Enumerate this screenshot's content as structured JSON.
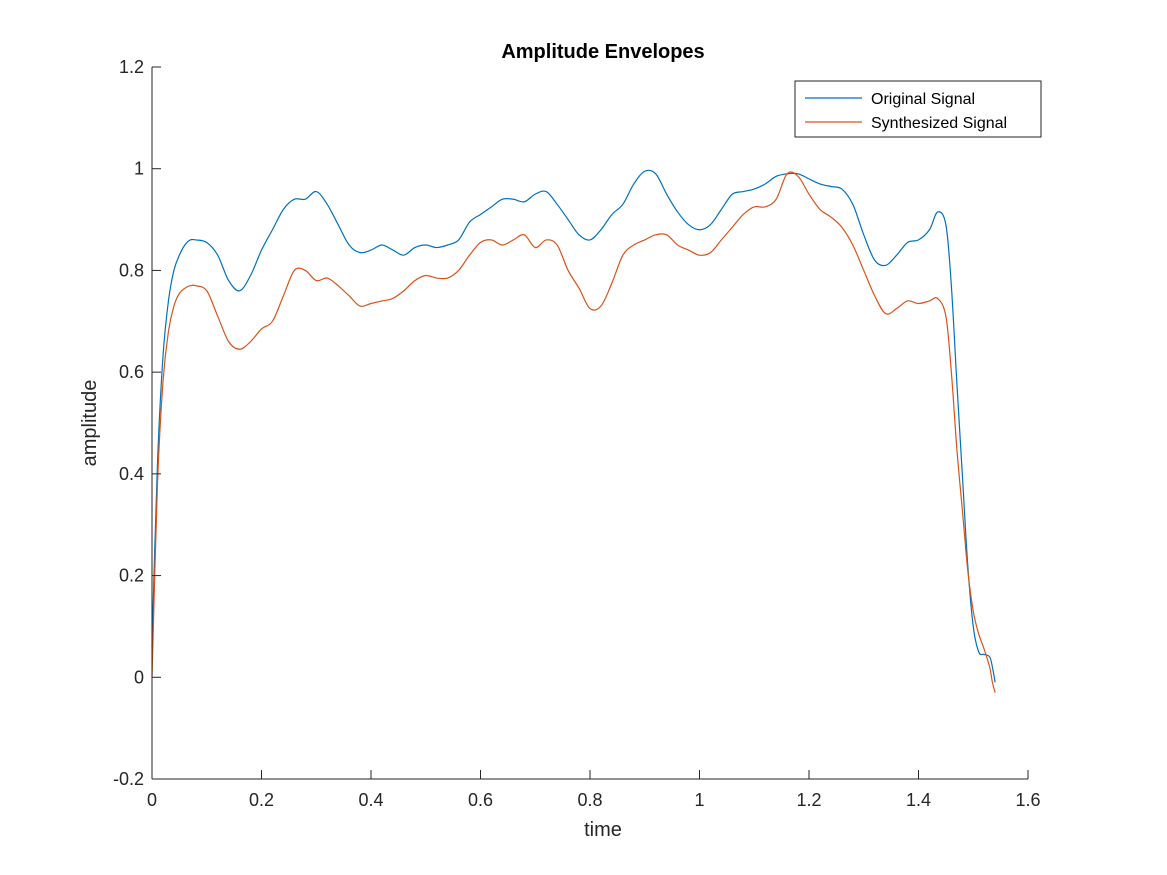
{
  "chart_data": {
    "type": "line",
    "title": "Amplitude Envelopes",
    "xlabel": "time",
    "ylabel": "amplitude",
    "xlim": [
      0,
      1.6
    ],
    "ylim": [
      -0.2,
      1.2
    ],
    "xticks": [
      "0",
      "0.2",
      "0.4",
      "0.6",
      "0.8",
      "1",
      "1.2",
      "1.4",
      "1.6"
    ],
    "yticks": [
      "-0.2",
      "0",
      "0.2",
      "0.4",
      "0.6",
      "0.8",
      "1",
      "1.2"
    ],
    "grid": false,
    "legend_position": "top-right",
    "series": [
      {
        "name": "Original Signal",
        "color": "#0072BD",
        "x": [
          0,
          0.01,
          0.02,
          0.03,
          0.04,
          0.05,
          0.06,
          0.07,
          0.08,
          0.1,
          0.12,
          0.14,
          0.16,
          0.18,
          0.2,
          0.22,
          0.24,
          0.26,
          0.28,
          0.3,
          0.32,
          0.34,
          0.36,
          0.38,
          0.4,
          0.42,
          0.44,
          0.46,
          0.48,
          0.5,
          0.52,
          0.54,
          0.56,
          0.58,
          0.6,
          0.62,
          0.64,
          0.66,
          0.68,
          0.7,
          0.72,
          0.74,
          0.76,
          0.78,
          0.8,
          0.82,
          0.84,
          0.86,
          0.88,
          0.9,
          0.92,
          0.94,
          0.96,
          0.98,
          1.0,
          1.02,
          1.04,
          1.06,
          1.08,
          1.1,
          1.12,
          1.14,
          1.16,
          1.18,
          1.2,
          1.22,
          1.24,
          1.26,
          1.28,
          1.3,
          1.32,
          1.34,
          1.36,
          1.38,
          1.4,
          1.42,
          1.435,
          1.45,
          1.46,
          1.47,
          1.48,
          1.49,
          1.5,
          1.51,
          1.52,
          1.53,
          1.535,
          1.54
        ],
        "y": [
          0.06,
          0.42,
          0.63,
          0.74,
          0.8,
          0.83,
          0.85,
          0.86,
          0.86,
          0.855,
          0.83,
          0.78,
          0.76,
          0.79,
          0.84,
          0.88,
          0.92,
          0.94,
          0.94,
          0.955,
          0.93,
          0.89,
          0.85,
          0.835,
          0.84,
          0.85,
          0.84,
          0.83,
          0.845,
          0.85,
          0.845,
          0.85,
          0.86,
          0.895,
          0.91,
          0.925,
          0.94,
          0.94,
          0.935,
          0.95,
          0.955,
          0.93,
          0.9,
          0.87,
          0.86,
          0.88,
          0.91,
          0.93,
          0.97,
          0.995,
          0.99,
          0.95,
          0.915,
          0.89,
          0.88,
          0.89,
          0.92,
          0.95,
          0.955,
          0.96,
          0.97,
          0.985,
          0.99,
          0.99,
          0.98,
          0.97,
          0.965,
          0.96,
          0.93,
          0.87,
          0.82,
          0.81,
          0.83,
          0.855,
          0.86,
          0.88,
          0.915,
          0.89,
          0.77,
          0.58,
          0.4,
          0.22,
          0.1,
          0.05,
          0.045,
          0.04,
          0.02,
          -0.01
        ]
      },
      {
        "name": "Synthesized Signal",
        "color": "#D95319",
        "x": [
          0,
          0.01,
          0.02,
          0.03,
          0.04,
          0.05,
          0.06,
          0.07,
          0.08,
          0.1,
          0.12,
          0.14,
          0.16,
          0.18,
          0.2,
          0.22,
          0.24,
          0.26,
          0.28,
          0.3,
          0.32,
          0.34,
          0.36,
          0.38,
          0.4,
          0.42,
          0.44,
          0.46,
          0.48,
          0.5,
          0.52,
          0.54,
          0.56,
          0.58,
          0.6,
          0.62,
          0.64,
          0.66,
          0.68,
          0.7,
          0.72,
          0.74,
          0.76,
          0.78,
          0.8,
          0.82,
          0.84,
          0.86,
          0.88,
          0.9,
          0.92,
          0.94,
          0.96,
          0.98,
          1.0,
          1.02,
          1.04,
          1.06,
          1.08,
          1.1,
          1.12,
          1.14,
          1.16,
          1.18,
          1.2,
          1.22,
          1.24,
          1.26,
          1.28,
          1.3,
          1.32,
          1.34,
          1.36,
          1.38,
          1.4,
          1.42,
          1.435,
          1.45,
          1.46,
          1.47,
          1.48,
          1.49,
          1.5,
          1.51,
          1.52,
          1.53,
          1.535,
          1.54
        ],
        "y": [
          0.0,
          0.38,
          0.58,
          0.68,
          0.73,
          0.755,
          0.765,
          0.77,
          0.77,
          0.76,
          0.71,
          0.66,
          0.645,
          0.66,
          0.685,
          0.7,
          0.75,
          0.8,
          0.8,
          0.78,
          0.785,
          0.77,
          0.75,
          0.73,
          0.735,
          0.74,
          0.745,
          0.76,
          0.78,
          0.79,
          0.785,
          0.785,
          0.8,
          0.83,
          0.855,
          0.86,
          0.85,
          0.86,
          0.87,
          0.845,
          0.86,
          0.85,
          0.8,
          0.765,
          0.725,
          0.73,
          0.775,
          0.83,
          0.85,
          0.86,
          0.87,
          0.87,
          0.85,
          0.84,
          0.83,
          0.835,
          0.86,
          0.885,
          0.91,
          0.925,
          0.925,
          0.94,
          0.99,
          0.985,
          0.95,
          0.92,
          0.905,
          0.885,
          0.85,
          0.8,
          0.75,
          0.715,
          0.725,
          0.74,
          0.735,
          0.74,
          0.745,
          0.71,
          0.6,
          0.45,
          0.33,
          0.21,
          0.13,
          0.085,
          0.055,
          0.02,
          -0.01,
          -0.03
        ]
      }
    ]
  }
}
